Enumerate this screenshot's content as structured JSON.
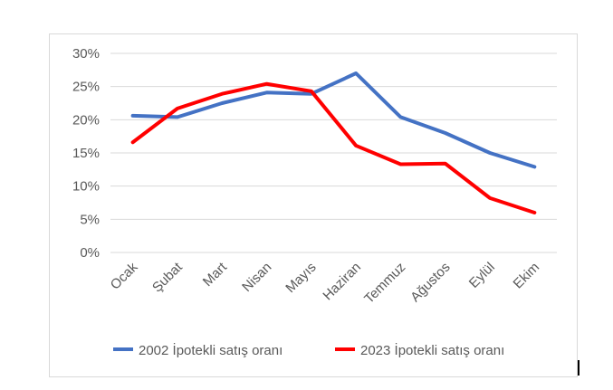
{
  "chart_data": {
    "type": "line",
    "categories": [
      "Ocak",
      "Şubat",
      "Mart",
      "Nisan",
      "Mayıs",
      "Haziran",
      "Temmuz",
      "Ağustos",
      "Eylül",
      "Ekim"
    ],
    "yticks": [
      "0%",
      "5%",
      "10%",
      "15%",
      "20%",
      "25%",
      "30%"
    ],
    "ylim": [
      0,
      30
    ],
    "grid": true,
    "legend_position": "bottom",
    "series": [
      {
        "name": "2002 İpotekli satış oranı",
        "color": "#4472C4",
        "values": [
          20.6,
          20.4,
          22.5,
          24.1,
          23.9,
          27.0,
          20.4,
          18.0,
          15.0,
          12.9
        ]
      },
      {
        "name": "2023 İpotekli satış oranı",
        "color": "#FF0000",
        "values": [
          16.6,
          21.7,
          23.9,
          25.4,
          24.3,
          16.1,
          13.3,
          13.4,
          8.2,
          6.0
        ]
      }
    ]
  }
}
